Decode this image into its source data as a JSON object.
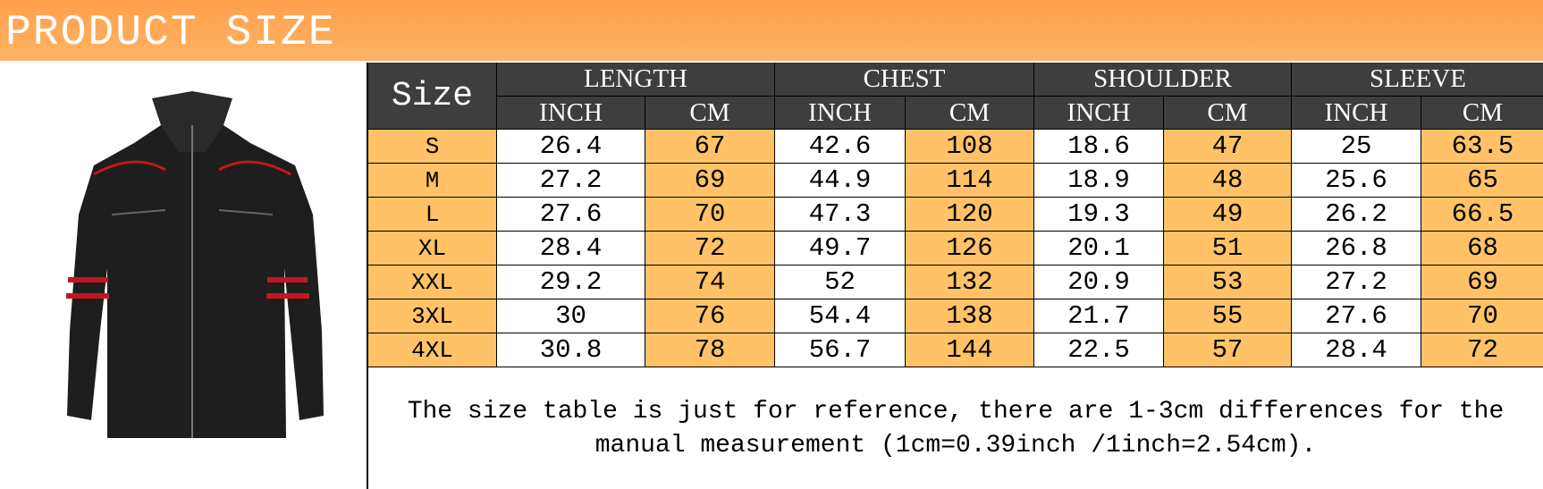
{
  "header": {
    "title": "PRODUCT SIZE"
  },
  "table": {
    "size_label": "Size",
    "groups": [
      "LENGTH",
      "CHEST",
      "SHOULDER",
      "SLEEVE"
    ],
    "subheaders": [
      "INCH",
      "CM",
      "INCH",
      "CM",
      "INCH",
      "CM",
      "INCH",
      "CM"
    ],
    "rows": [
      [
        "S",
        "26.4",
        "67",
        "42.6",
        "108",
        "18.6",
        "47",
        "25",
        "63.5"
      ],
      [
        "M",
        "27.2",
        "69",
        "44.9",
        "114",
        "18.9",
        "48",
        "25.6",
        "65"
      ],
      [
        "L",
        "27.6",
        "70",
        "47.3",
        "120",
        "19.3",
        "49",
        "26.2",
        "66.5"
      ],
      [
        "XL",
        "28.4",
        "72",
        "49.7",
        "126",
        "20.1",
        "51",
        "26.8",
        "68"
      ],
      [
        "XXL",
        "29.2",
        "74",
        "52",
        "132",
        "20.9",
        "53",
        "27.2",
        "69"
      ],
      [
        "3XL",
        "30",
        "76",
        "54.4",
        "138",
        "21.7",
        "55",
        "27.6",
        "70"
      ],
      [
        "4XL",
        "30.8",
        "78",
        "56.7",
        "144",
        "22.5",
        "57",
        "28.4",
        "72"
      ]
    ],
    "note": "The size table is just for reference, there are 1-3cm differences for the manual measurement (1cm=0.39inch /1inch=2.54cm)."
  }
}
